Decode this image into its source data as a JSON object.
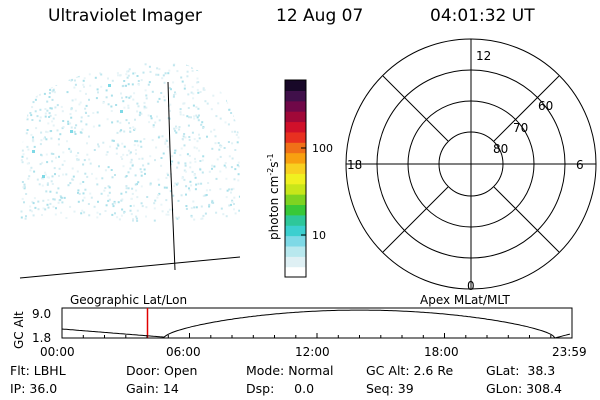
{
  "header": {
    "instrument": "Ultraviolet Imager",
    "date": "12 Aug 07",
    "time": "04:01:32 UT"
  },
  "colorbar": {
    "unit_label": "photon cm",
    "unit_exp1": "-2",
    "unit_mid": "s",
    "unit_exp2": "-1",
    "ticks": [
      "100",
      "10"
    ],
    "colors": [
      "#ffffff",
      "#dff0f4",
      "#b8e8ee",
      "#7ed9e6",
      "#3ccfcf",
      "#2ec79a",
      "#38c838",
      "#7ed321",
      "#c8e61a",
      "#f0f020",
      "#f8d020",
      "#f8a010",
      "#f07018",
      "#e83020",
      "#d0102a",
      "#a00838",
      "#700848",
      "#40104a",
      "#180828"
    ]
  },
  "polar": {
    "mlt_labels": {
      "top": "12",
      "right": "6",
      "bottom": "0",
      "left": "18"
    },
    "lat_labels": [
      "60",
      "70",
      "80"
    ]
  },
  "timeline": {
    "left_title": "Geographic Lat/Lon",
    "right_title": "Apex MLat/MLT",
    "axis_title": "GC Alt",
    "y_ticks": [
      "9.0",
      "1.8"
    ],
    "x_ticks": [
      "00:00",
      "06:00",
      "12:00",
      "18:00",
      "23:59"
    ],
    "marker_time_hours": 4.025
  },
  "status": {
    "flt": "Flt: LBHL",
    "ip": "IP: 36.0",
    "door": "Door: Open",
    "gain": "Gain: 14",
    "mode": "Mode: Normal",
    "dsp": "Dsp:     0.0",
    "gc_alt": "GC Alt: 2.6 Re",
    "seq": "Seq: 39",
    "glat": "GLat:  38.3",
    "glon": "GLon: 308.4"
  }
}
